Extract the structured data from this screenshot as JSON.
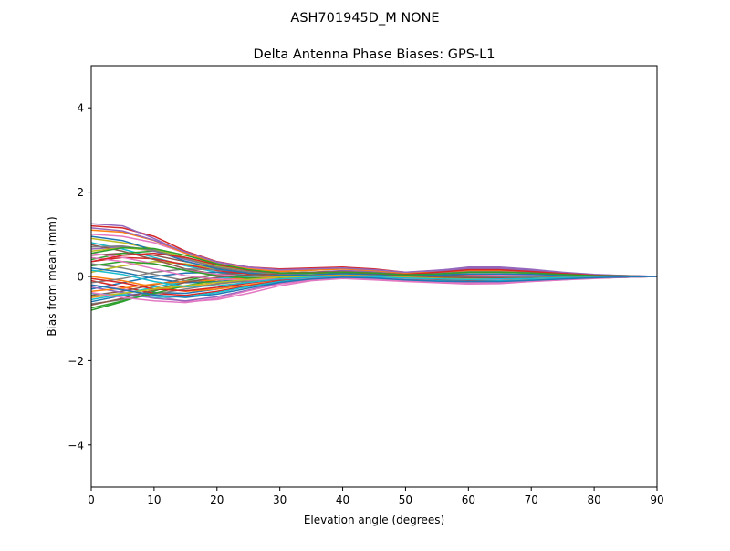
{
  "figure": {
    "suptitle": "ASH701945D_M    NONE"
  },
  "chart_data": {
    "type": "line",
    "title": "Delta Antenna Phase Biases: GPS-L1",
    "xlabel": "Elevation angle (degrees)",
    "ylabel": "Bias from mean (mm)",
    "xlim": [
      0,
      90
    ],
    "ylim": [
      -5,
      5
    ],
    "xticks": [
      0,
      10,
      20,
      30,
      40,
      50,
      60,
      70,
      80,
      90
    ],
    "yticks": [
      -4,
      -2,
      0,
      2,
      4
    ],
    "xtick_labels": [
      "0",
      "10",
      "20",
      "30",
      "40",
      "50",
      "60",
      "70",
      "80",
      "90"
    ],
    "ytick_labels": [
      "−4",
      "−2",
      "0",
      "2",
      "4"
    ],
    "grid": false,
    "legend": "none",
    "x": [
      0,
      5,
      10,
      15,
      20,
      25,
      30,
      35,
      40,
      45,
      50,
      55,
      60,
      65,
      70,
      75,
      80,
      85,
      90
    ],
    "series": [
      {
        "color": "#1f77b4",
        "values": [
          -0.6,
          -0.45,
          -0.38,
          -0.4,
          -0.3,
          -0.15,
          -0.06,
          -0.02,
          0.0,
          -0.02,
          -0.05,
          -0.08,
          -0.1,
          -0.1,
          -0.08,
          -0.06,
          -0.04,
          -0.02,
          0.0
        ]
      },
      {
        "color": "#ff7f0e",
        "values": [
          -0.5,
          -0.4,
          -0.3,
          -0.25,
          -0.18,
          -0.1,
          -0.04,
          0.0,
          0.02,
          0.0,
          -0.03,
          -0.05,
          -0.06,
          -0.06,
          -0.05,
          -0.04,
          -0.03,
          -0.01,
          0.0
        ]
      },
      {
        "color": "#2ca02c",
        "values": [
          -0.8,
          -0.6,
          -0.35,
          -0.1,
          0.05,
          0.1,
          0.12,
          0.15,
          0.18,
          0.14,
          0.05,
          -0.02,
          -0.05,
          -0.08,
          -0.08,
          -0.06,
          -0.04,
          -0.02,
          0.0
        ]
      },
      {
        "color": "#d62728",
        "values": [
          1.2,
          1.15,
          0.95,
          0.6,
          0.35,
          0.22,
          0.18,
          0.2,
          0.22,
          0.18,
          0.1,
          0.05,
          0.03,
          0.02,
          0.01,
          0.0,
          0.0,
          0.0,
          0.0
        ]
      },
      {
        "color": "#9467bd",
        "values": [
          1.25,
          1.2,
          0.9,
          0.55,
          0.3,
          0.2,
          0.15,
          0.18,
          0.2,
          0.15,
          0.1,
          0.15,
          0.2,
          0.2,
          0.15,
          0.08,
          0.04,
          0.02,
          0.0
        ]
      },
      {
        "color": "#8c564b",
        "values": [
          0.5,
          0.55,
          0.5,
          0.35,
          0.2,
          0.12,
          0.08,
          0.1,
          0.12,
          0.08,
          0.04,
          0.02,
          0.01,
          0.0,
          0.0,
          0.0,
          0.0,
          0.0,
          0.0
        ]
      },
      {
        "color": "#e377c2",
        "values": [
          -0.2,
          -0.3,
          -0.45,
          -0.6,
          -0.55,
          -0.4,
          -0.22,
          -0.1,
          -0.05,
          -0.08,
          -0.12,
          -0.15,
          -0.18,
          -0.17,
          -0.12,
          -0.08,
          -0.05,
          -0.02,
          0.0
        ]
      },
      {
        "color": "#7f7f7f",
        "values": [
          0.3,
          0.2,
          0.05,
          -0.1,
          -0.15,
          -0.12,
          -0.08,
          -0.05,
          -0.02,
          -0.03,
          -0.05,
          -0.06,
          -0.06,
          -0.05,
          -0.04,
          -0.03,
          -0.02,
          -0.01,
          0.0
        ]
      },
      {
        "color": "#bcbd22",
        "values": [
          0.9,
          0.8,
          0.65,
          0.45,
          0.25,
          0.12,
          0.06,
          0.08,
          0.1,
          0.08,
          0.05,
          0.08,
          0.12,
          0.12,
          0.1,
          0.06,
          0.03,
          0.01,
          0.0
        ]
      },
      {
        "color": "#17becf",
        "values": [
          0.8,
          0.65,
          0.45,
          0.25,
          0.1,
          0.02,
          -0.02,
          -0.02,
          0.0,
          -0.01,
          -0.03,
          -0.04,
          -0.05,
          -0.05,
          -0.04,
          -0.03,
          -0.02,
          -0.01,
          0.0
        ]
      },
      {
        "color": "#1f77b4",
        "values": [
          -0.3,
          -0.15,
          0.0,
          0.08,
          0.1,
          0.08,
          0.05,
          0.05,
          0.06,
          0.04,
          0.02,
          0.0,
          -0.01,
          -0.01,
          -0.01,
          0.0,
          0.0,
          0.0,
          0.0
        ]
      },
      {
        "color": "#ff7f0e",
        "values": [
          0.0,
          -0.1,
          -0.25,
          -0.35,
          -0.3,
          -0.2,
          -0.1,
          -0.05,
          -0.02,
          -0.04,
          -0.08,
          -0.1,
          -0.12,
          -0.12,
          -0.1,
          -0.07,
          -0.04,
          -0.02,
          0.0
        ]
      },
      {
        "color": "#2ca02c",
        "values": [
          0.4,
          0.55,
          0.6,
          0.45,
          0.25,
          0.1,
          0.02,
          0.0,
          0.02,
          0.01,
          -0.02,
          -0.03,
          -0.04,
          -0.04,
          -0.03,
          -0.02,
          -0.01,
          0.0,
          0.0
        ]
      },
      {
        "color": "#d62728",
        "values": [
          -0.1,
          -0.25,
          -0.4,
          -0.45,
          -0.35,
          -0.22,
          -0.1,
          -0.04,
          0.0,
          -0.02,
          -0.06,
          -0.08,
          -0.09,
          -0.08,
          -0.06,
          -0.04,
          -0.02,
          -0.01,
          0.0
        ]
      },
      {
        "color": "#9467bd",
        "values": [
          0.65,
          0.7,
          0.6,
          0.4,
          0.22,
          0.12,
          0.08,
          0.1,
          0.14,
          0.12,
          0.08,
          0.12,
          0.18,
          0.18,
          0.14,
          0.08,
          0.04,
          0.02,
          0.0
        ]
      },
      {
        "color": "#8c564b",
        "values": [
          -0.45,
          -0.35,
          -0.2,
          -0.05,
          0.05,
          0.08,
          0.08,
          0.1,
          0.12,
          0.09,
          0.04,
          0.01,
          -0.01,
          -0.02,
          -0.02,
          -0.01,
          0.0,
          0.0,
          0.0
        ]
      },
      {
        "color": "#e377c2",
        "values": [
          1.0,
          0.95,
          0.8,
          0.55,
          0.32,
          0.2,
          0.14,
          0.16,
          0.18,
          0.14,
          0.08,
          0.06,
          0.05,
          0.04,
          0.03,
          0.02,
          0.01,
          0.0,
          0.0
        ]
      },
      {
        "color": "#7f7f7f",
        "values": [
          -0.65,
          -0.55,
          -0.42,
          -0.3,
          -0.18,
          -0.08,
          -0.02,
          0.0,
          0.02,
          0.0,
          -0.04,
          -0.07,
          -0.08,
          -0.08,
          -0.07,
          -0.05,
          -0.03,
          -0.01,
          0.0
        ]
      },
      {
        "color": "#bcbd22",
        "values": [
          0.1,
          0.25,
          0.35,
          0.3,
          0.18,
          0.08,
          0.02,
          0.01,
          0.02,
          0.01,
          -0.01,
          -0.02,
          -0.03,
          -0.03,
          -0.02,
          -0.01,
          0.0,
          0.0,
          0.0
        ]
      },
      {
        "color": "#17becf",
        "values": [
          -0.4,
          -0.45,
          -0.5,
          -0.48,
          -0.38,
          -0.24,
          -0.12,
          -0.05,
          -0.01,
          -0.03,
          -0.07,
          -0.09,
          -0.1,
          -0.1,
          -0.08,
          -0.05,
          -0.03,
          -0.01,
          0.0
        ]
      },
      {
        "color": "#1f77b4",
        "values": [
          0.2,
          0.1,
          -0.05,
          -0.15,
          -0.12,
          -0.06,
          -0.02,
          0.0,
          0.02,
          0.01,
          -0.01,
          -0.02,
          -0.03,
          -0.03,
          -0.02,
          -0.01,
          -0.01,
          0.0,
          0.0
        ]
      },
      {
        "color": "#ff7f0e",
        "values": [
          1.1,
          1.05,
          0.85,
          0.55,
          0.3,
          0.18,
          0.12,
          0.15,
          0.18,
          0.14,
          0.08,
          0.1,
          0.14,
          0.14,
          0.11,
          0.06,
          0.03,
          0.01,
          0.0
        ]
      },
      {
        "color": "#2ca02c",
        "values": [
          -0.75,
          -0.58,
          -0.4,
          -0.22,
          -0.08,
          0.0,
          0.04,
          0.07,
          0.1,
          0.07,
          0.02,
          -0.02,
          -0.04,
          -0.05,
          -0.05,
          -0.04,
          -0.03,
          -0.01,
          0.0
        ]
      },
      {
        "color": "#d62728",
        "values": [
          0.35,
          0.45,
          0.42,
          0.28,
          0.14,
          0.06,
          0.02,
          0.02,
          0.04,
          0.02,
          0.0,
          0.04,
          0.1,
          0.1,
          0.08,
          0.05,
          0.02,
          0.01,
          0.0
        ]
      },
      {
        "color": "#9467bd",
        "values": [
          -0.25,
          -0.38,
          -0.52,
          -0.58,
          -0.48,
          -0.32,
          -0.16,
          -0.07,
          -0.02,
          -0.05,
          -0.1,
          -0.13,
          -0.15,
          -0.14,
          -0.11,
          -0.07,
          -0.04,
          -0.02,
          0.0
        ]
      },
      {
        "color": "#8c564b",
        "values": [
          0.75,
          0.6,
          0.4,
          0.18,
          0.05,
          -0.02,
          -0.04,
          -0.03,
          -0.01,
          -0.02,
          -0.04,
          -0.05,
          -0.05,
          -0.05,
          -0.04,
          -0.03,
          -0.02,
          -0.01,
          0.0
        ]
      },
      {
        "color": "#e377c2",
        "values": [
          0.55,
          0.45,
          0.3,
          0.15,
          0.05,
          0.0,
          -0.02,
          -0.01,
          0.01,
          0.0,
          -0.02,
          -0.03,
          -0.03,
          -0.03,
          -0.02,
          -0.02,
          -0.01,
          0.0,
          0.0
        ]
      },
      {
        "color": "#7f7f7f",
        "values": [
          -0.15,
          -0.05,
          0.1,
          0.18,
          0.16,
          0.1,
          0.06,
          0.06,
          0.08,
          0.05,
          0.01,
          -0.01,
          -0.02,
          -0.02,
          -0.01,
          -0.01,
          0.0,
          0.0,
          0.0
        ]
      },
      {
        "color": "#bcbd22",
        "values": [
          0.6,
          0.68,
          0.62,
          0.44,
          0.24,
          0.12,
          0.06,
          0.07,
          0.1,
          0.08,
          0.04,
          0.06,
          0.1,
          0.1,
          0.08,
          0.05,
          0.02,
          0.01,
          0.0
        ]
      },
      {
        "color": "#17becf",
        "values": [
          -0.55,
          -0.42,
          -0.25,
          -0.12,
          -0.04,
          0.0,
          0.02,
          0.04,
          0.06,
          0.04,
          0.0,
          -0.03,
          -0.05,
          -0.05,
          -0.04,
          -0.03,
          -0.02,
          -0.01,
          0.0
        ]
      },
      {
        "color": "#1f77b4",
        "values": [
          0.95,
          0.85,
          0.62,
          0.36,
          0.18,
          0.08,
          0.03,
          0.04,
          0.07,
          0.05,
          0.02,
          0.03,
          0.06,
          0.06,
          0.05,
          0.03,
          0.02,
          0.01,
          0.0
        ]
      },
      {
        "color": "#ff7f0e",
        "values": [
          -0.35,
          -0.28,
          -0.18,
          -0.12,
          -0.08,
          -0.04,
          -0.01,
          0.01,
          0.03,
          0.01,
          -0.02,
          -0.04,
          -0.05,
          -0.05,
          -0.04,
          -0.03,
          -0.02,
          -0.01,
          0.0
        ]
      },
      {
        "color": "#2ca02c",
        "values": [
          0.25,
          0.35,
          0.3,
          0.14,
          0.02,
          -0.04,
          -0.05,
          -0.03,
          -0.01,
          -0.02,
          -0.04,
          -0.05,
          -0.06,
          -0.06,
          -0.05,
          -0.03,
          -0.02,
          -0.01,
          0.0
        ]
      },
      {
        "color": "#d62728",
        "values": [
          -0.05,
          -0.15,
          -0.3,
          -0.34,
          -0.26,
          -0.16,
          -0.07,
          -0.02,
          0.01,
          -0.01,
          -0.05,
          -0.07,
          -0.08,
          -0.07,
          -0.05,
          -0.03,
          -0.02,
          -0.01,
          0.0
        ]
      },
      {
        "color": "#9467bd",
        "values": [
          1.15,
          1.08,
          0.86,
          0.58,
          0.34,
          0.22,
          0.16,
          0.18,
          0.2,
          0.16,
          0.1,
          0.14,
          0.22,
          0.22,
          0.17,
          0.1,
          0.05,
          0.02,
          0.0
        ]
      },
      {
        "color": "#8c564b",
        "values": [
          -0.68,
          -0.52,
          -0.32,
          -0.14,
          -0.02,
          0.04,
          0.06,
          0.08,
          0.1,
          0.07,
          0.02,
          -0.01,
          -0.03,
          -0.04,
          -0.04,
          -0.03,
          -0.02,
          -0.01,
          0.0
        ]
      },
      {
        "color": "#e377c2",
        "values": [
          0.45,
          0.35,
          0.18,
          0.02,
          -0.06,
          -0.08,
          -0.06,
          -0.03,
          -0.01,
          -0.02,
          -0.05,
          -0.06,
          -0.07,
          -0.07,
          -0.05,
          -0.04,
          -0.02,
          -0.01,
          0.0
        ]
      },
      {
        "color": "#7f7f7f",
        "values": [
          0.7,
          0.72,
          0.62,
          0.42,
          0.22,
          0.12,
          0.07,
          0.08,
          0.11,
          0.09,
          0.05,
          0.07,
          0.11,
          0.11,
          0.09,
          0.05,
          0.02,
          0.01,
          0.0
        ]
      },
      {
        "color": "#bcbd22",
        "values": [
          -0.48,
          -0.4,
          -0.3,
          -0.22,
          -0.14,
          -0.07,
          -0.02,
          0.0,
          0.02,
          0.0,
          -0.03,
          -0.05,
          -0.06,
          -0.06,
          -0.05,
          -0.03,
          -0.02,
          -0.01,
          0.0
        ]
      },
      {
        "color": "#17becf",
        "values": [
          0.15,
          0.05,
          -0.12,
          -0.24,
          -0.22,
          -0.14,
          -0.06,
          -0.02,
          0.01,
          -0.01,
          -0.04,
          -0.06,
          -0.07,
          -0.06,
          -0.05,
          -0.03,
          -0.02,
          -0.01,
          0.0
        ]
      },
      {
        "color": "#d62728",
        "values": [
          0.35,
          0.5,
          0.55,
          0.45,
          0.28,
          0.15,
          0.08,
          0.08,
          0.1,
          0.08,
          0.05,
          0.1,
          0.16,
          0.16,
          0.12,
          0.07,
          0.03,
          0.01,
          0.0
        ]
      },
      {
        "color": "#2ca02c",
        "values": [
          0.55,
          0.68,
          0.66,
          0.5,
          0.3,
          0.16,
          0.08,
          0.08,
          0.1,
          0.08,
          0.04,
          0.06,
          0.1,
          0.1,
          0.08,
          0.05,
          0.02,
          0.01,
          0.0
        ]
      },
      {
        "color": "#e377c2",
        "values": [
          -0.38,
          -0.5,
          -0.58,
          -0.62,
          -0.52,
          -0.34,
          -0.18,
          -0.08,
          -0.03,
          -0.06,
          -0.11,
          -0.14,
          -0.16,
          -0.15,
          -0.12,
          -0.08,
          -0.04,
          -0.02,
          0.0
        ]
      },
      {
        "color": "#1f77b4",
        "values": [
          -0.2,
          -0.32,
          -0.44,
          -0.5,
          -0.42,
          -0.28,
          -0.14,
          -0.06,
          -0.02,
          -0.04,
          -0.08,
          -0.11,
          -0.12,
          -0.12,
          -0.09,
          -0.06,
          -0.03,
          -0.01,
          0.0
        ]
      }
    ]
  }
}
